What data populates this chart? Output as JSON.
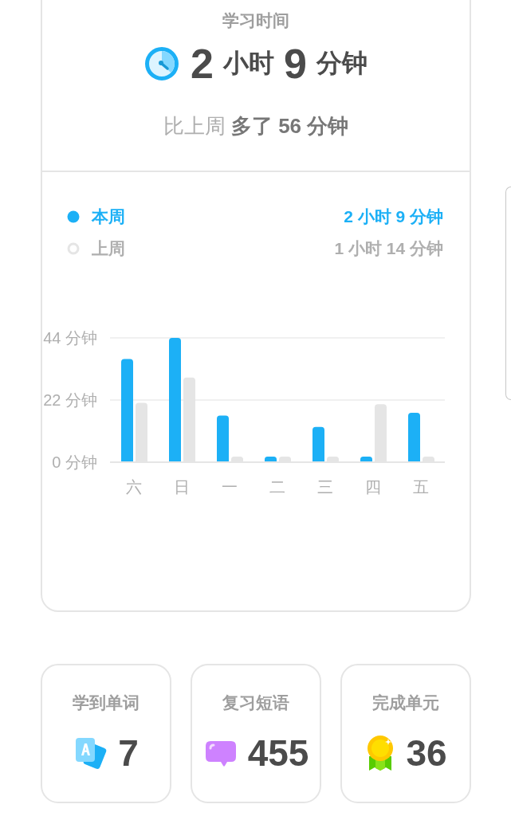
{
  "chart_data": [
    {
      "type": "bar",
      "title": "学习时间",
      "subtitle": "2 小时 9 分钟",
      "annotations": [
        "比上周 多了 56 分钟",
        "2 小时 9 分钟",
        "1 小时 14 分钟"
      ],
      "categories": [
        "六",
        "日",
        "一",
        "二",
        "三",
        "四",
        "五"
      ],
      "series": [
        {
          "name": "本周",
          "color": "#1cb0f6",
          "values": [
            36.5,
            44,
            16.5,
            2,
            12.5,
            2,
            17.5
          ]
        },
        {
          "name": "上周",
          "color": "#e5e5e5",
          "values": [
            21,
            30,
            2,
            2,
            2,
            20.5,
            2
          ]
        }
      ],
      "ylim": [
        0,
        44
      ],
      "yticks": [
        {
          "value": 0,
          "label": "0 分钟"
        },
        {
          "value": 22,
          "label": "22 分钟"
        },
        {
          "value": 44,
          "label": "44 分钟"
        }
      ],
      "grid": "y",
      "legend": "top left"
    },
    {
      "type": "other",
      "categories": [
        "学到单词",
        "复习短语",
        "完成单元"
      ],
      "values": [
        7,
        455,
        36
      ],
      "data_labels": true
    }
  ]
}
